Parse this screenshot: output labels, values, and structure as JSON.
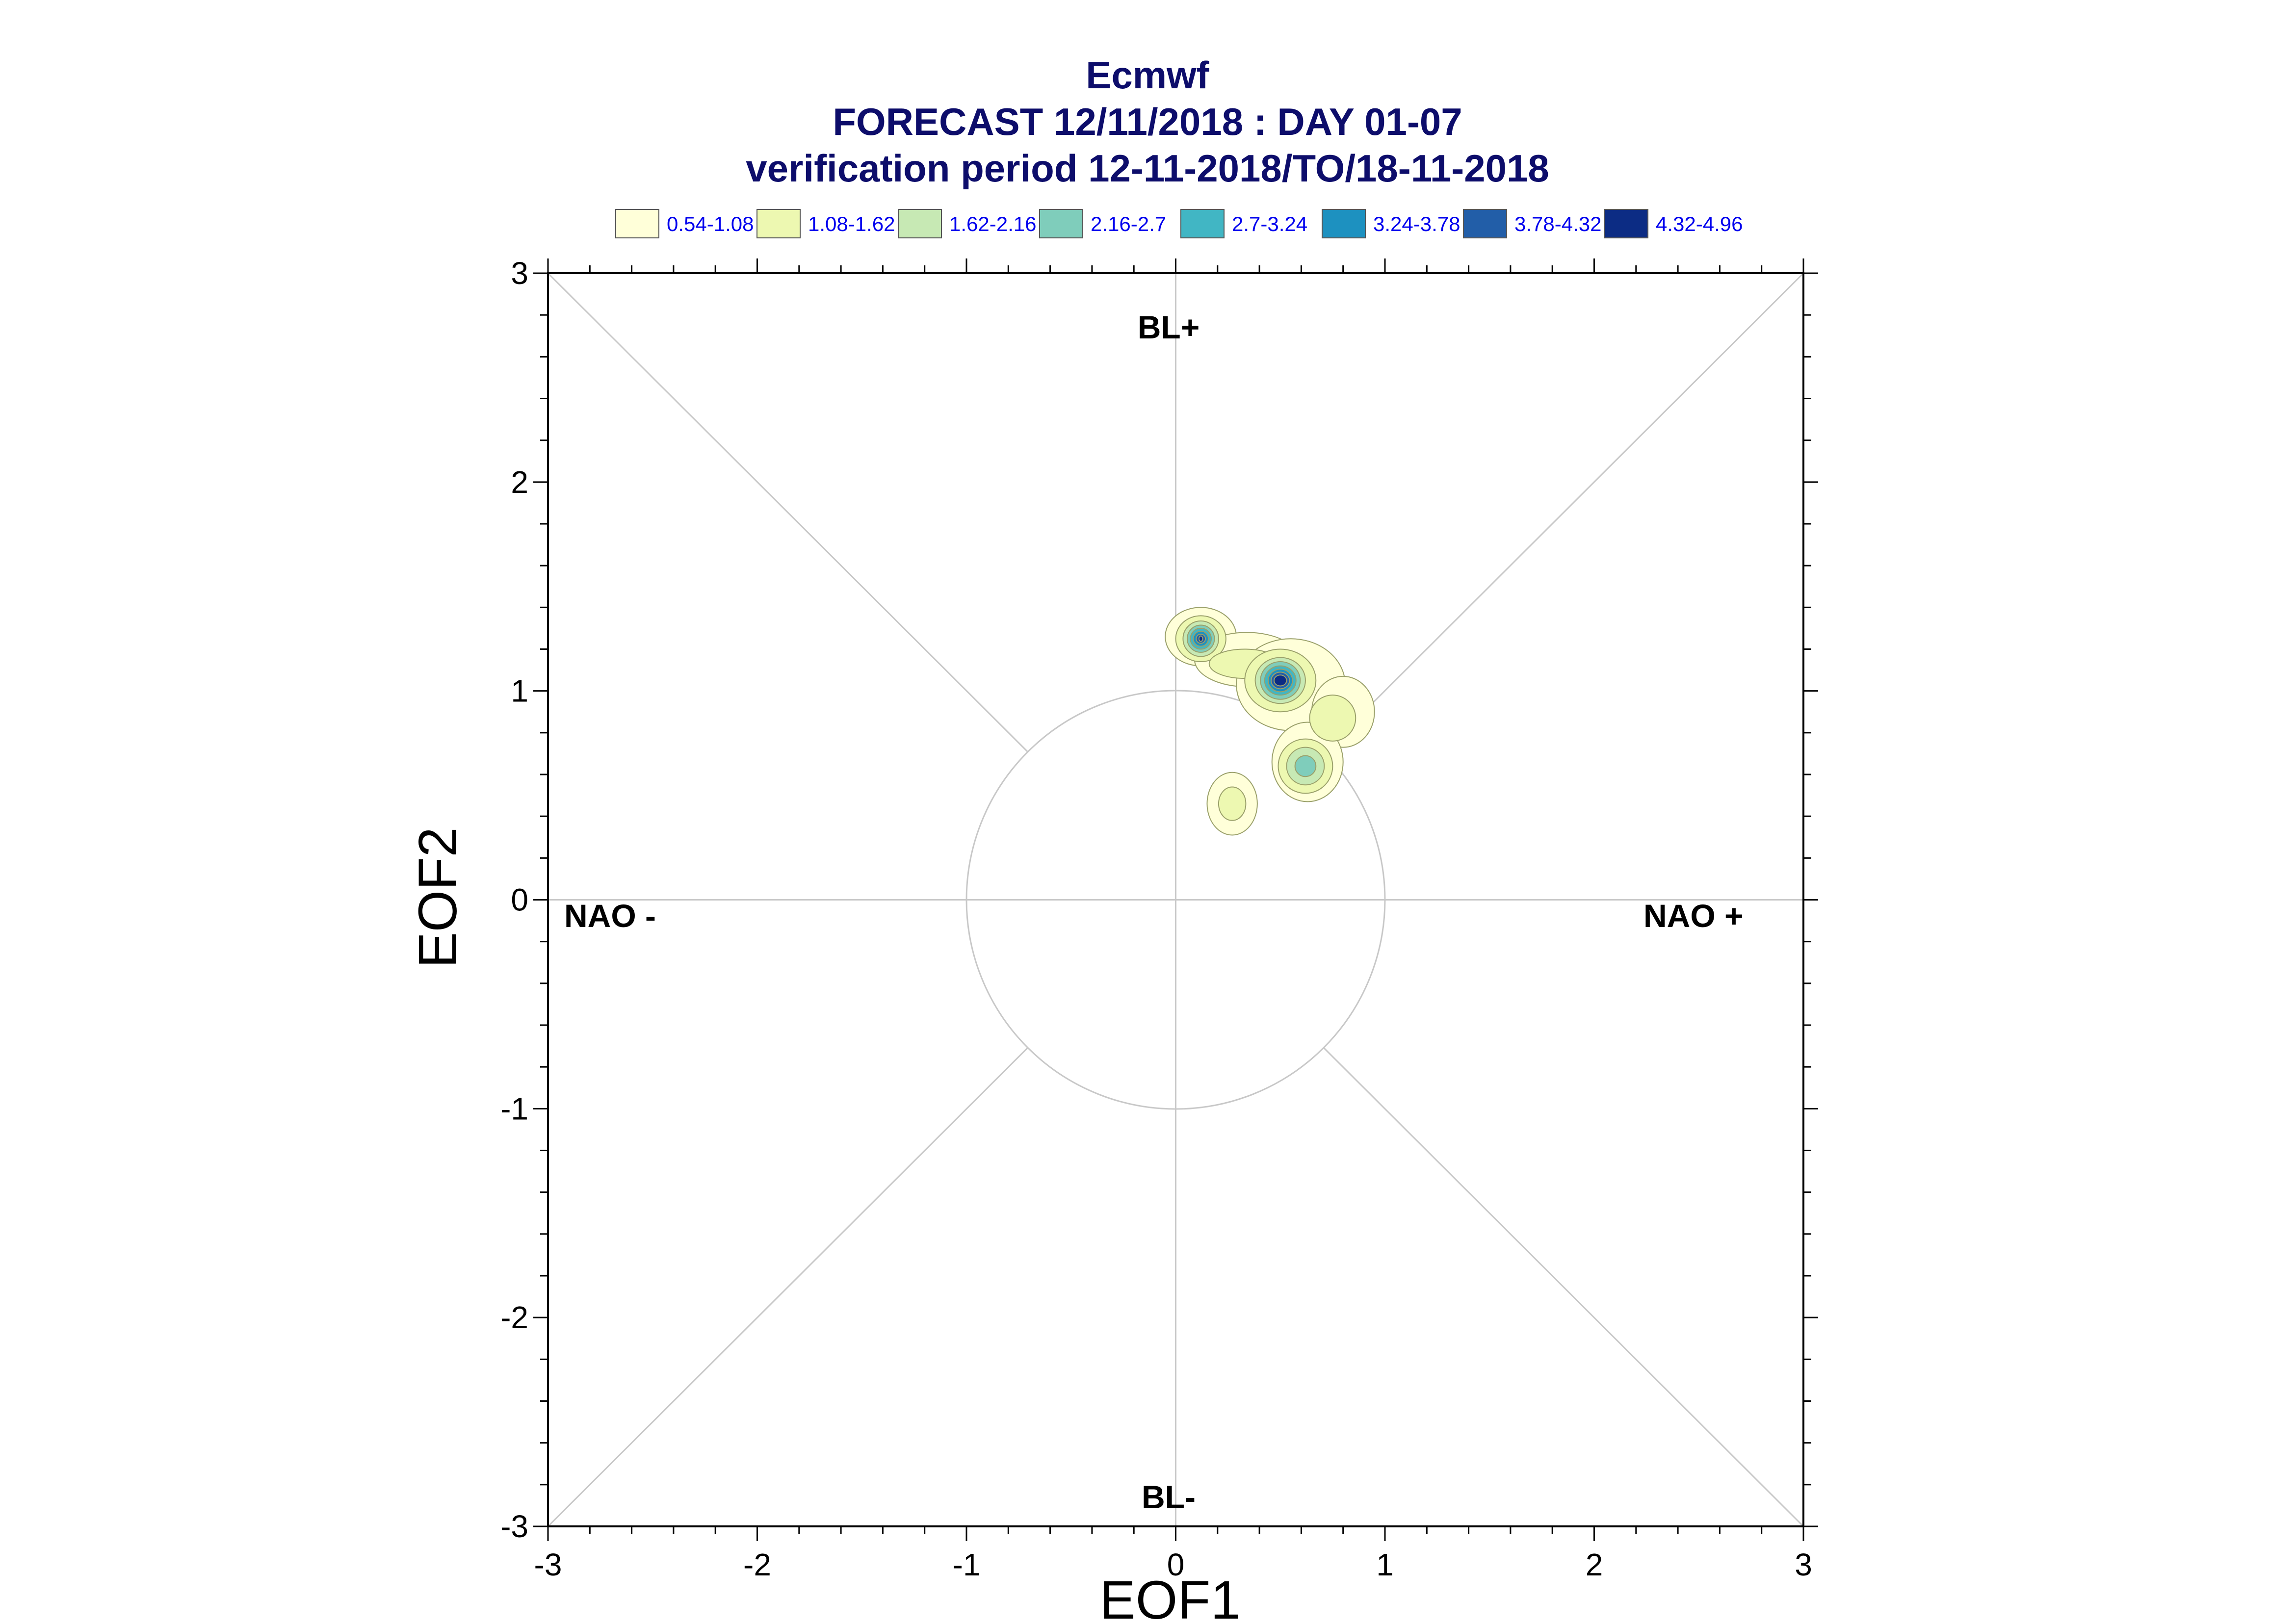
{
  "title": {
    "line1": "Ecmwf",
    "line2": "FORECAST 12/11/2018 : DAY 01-07",
    "line3": "verification period 12-11-2018/TO/18-11-2018"
  },
  "legend": [
    {
      "label": "0.54-1.08",
      "color": "#ffffd9"
    },
    {
      "label": "1.08-1.62",
      "color": "#edf8b1"
    },
    {
      "label": "1.62-2.16",
      "color": "#c7e9b4"
    },
    {
      "label": "2.16-2.7",
      "color": "#7fcdbb"
    },
    {
      "label": "2.7-3.24",
      "color": "#41b6c4"
    },
    {
      "label": "3.24-3.78",
      "color": "#1d91c0"
    },
    {
      "label": "3.78-4.32",
      "color": "#225ea8"
    },
    {
      "label": "4.32-4.96",
      "color": "#0c2c84"
    }
  ],
  "regimes": {
    "top": "BL+",
    "bottom": "BL-",
    "left": "NAO -",
    "right": "NAO +"
  },
  "chart_data": {
    "type": "contour",
    "xlabel": "EOF1",
    "ylabel": "EOF2",
    "xlim": [
      -3,
      3
    ],
    "ylim": [
      -3,
      3
    ],
    "xticks": [
      "-3",
      "-2",
      "-1",
      "0",
      "1",
      "2",
      "3"
    ],
    "yticks": [
      "-3",
      "-2",
      "-1",
      "0",
      "1",
      "2",
      "3"
    ],
    "reference_circle_radius": 1,
    "diagonals": true,
    "density_peaks": [
      {
        "x": 0.12,
        "y": 1.26,
        "max_level": "4.32-4.96"
      },
      {
        "x": 0.5,
        "y": 1.05,
        "max_level": "4.32-4.96"
      },
      {
        "x": 0.62,
        "y": 0.64,
        "max_level": "2.16-2.7"
      },
      {
        "x": 0.27,
        "y": 0.46,
        "max_level": "1.08-1.62"
      }
    ]
  }
}
